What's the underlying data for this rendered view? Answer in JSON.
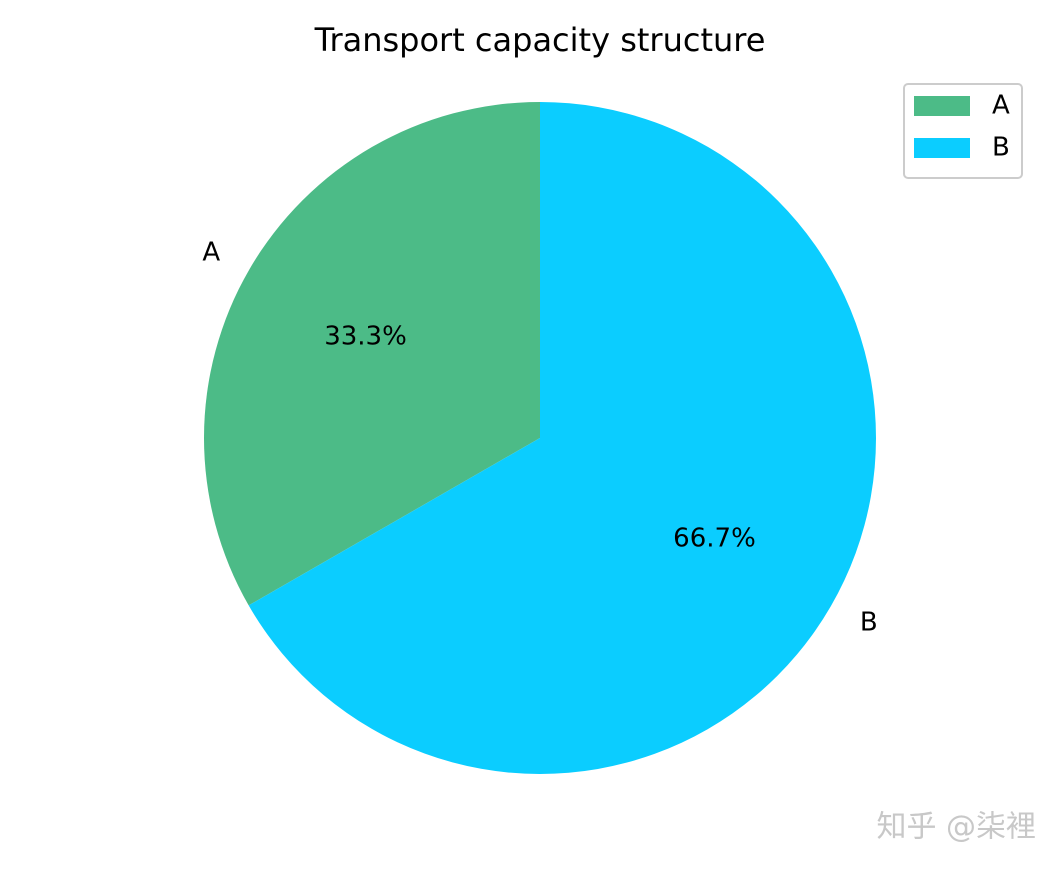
{
  "chart_data": {
    "type": "pie",
    "title": "Transport capacity structure",
    "categories": [
      "A",
      "B"
    ],
    "values": [
      33.3,
      66.7
    ],
    "value_labels": [
      "33.3%",
      "66.7%"
    ],
    "colors": [
      "#4cbb87",
      "#0bcdff"
    ],
    "start_angle": 90,
    "legend": "upper right",
    "watermark": "知乎 @柒裡"
  }
}
